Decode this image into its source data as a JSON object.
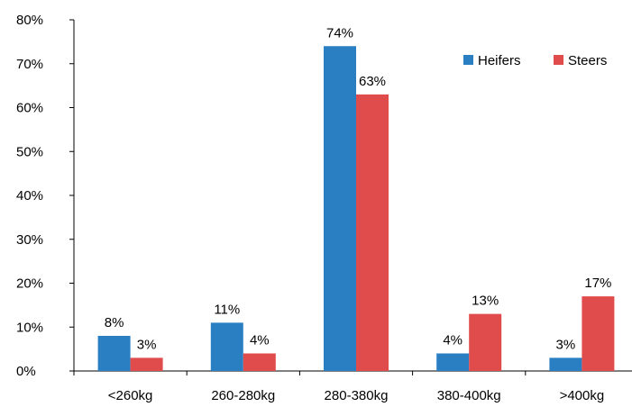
{
  "chart_data": {
    "type": "bar",
    "title": "",
    "xlabel": "",
    "ylabel": "",
    "categories": [
      "<260kg",
      "260-280kg",
      "280-380kg",
      "380-400kg",
      ">400kg"
    ],
    "series": [
      {
        "name": "Heifers",
        "color": "#2a7fc3",
        "values": [
          8,
          11,
          74,
          4,
          3
        ],
        "labels": [
          "8%",
          "11%",
          "74%",
          "4%",
          "3%"
        ]
      },
      {
        "name": "Steers",
        "color": "#e04b4b",
        "values": [
          3,
          4,
          63,
          13,
          17
        ],
        "labels": [
          "3%",
          "4%",
          "63%",
          "13%",
          "17%"
        ]
      }
    ],
    "ylim": [
      0,
      80
    ],
    "yticks": [
      0,
      10,
      20,
      30,
      40,
      50,
      60,
      70,
      80
    ],
    "ytick_labels": [
      "0%",
      "10%",
      "20%",
      "30%",
      "40%",
      "50%",
      "60%",
      "70%",
      "80%"
    ],
    "grid": false,
    "legend": "top-right"
  }
}
